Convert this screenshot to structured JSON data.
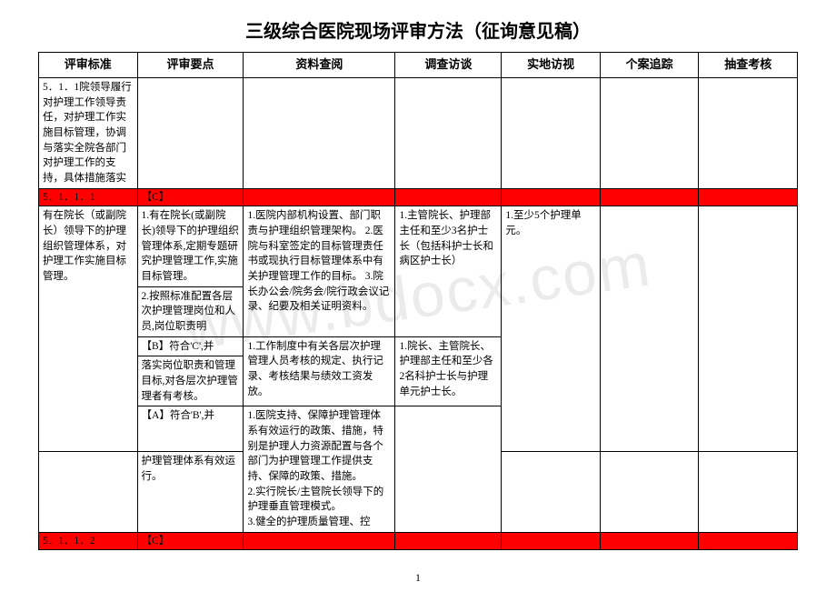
{
  "watermark": "www.bdocx.com",
  "title": "三级综合医院现场评审方法（征询意见稿）",
  "pageNumber": "1",
  "columns": [
    "评审标准",
    "评审要点",
    "资料查阅",
    "调查访谈",
    "实地访视",
    "个案追踪",
    "抽查考核"
  ],
  "rows": {
    "r0": {
      "c0": "5．1．1院领导履行对护理工作领导责任，对护理工作实施目标管理，协调与落实全院各部门对护理工作的支持，具体措施落实"
    },
    "red1": {
      "c0": "5．1．1．1",
      "c1": "【C】"
    },
    "r1a": {
      "c0": "有在院长（或副院长）领导下的护理组织管理体系，对护理工作实施目标管理。",
      "c1": "1.有在院长(或副院长)领导下的护理组织管理体系,定期专题研究护理管理工作,实施目标管理。",
      "c2_merged": "1.医院内部机构设置、部门职责与护理组织管理架构。 2.医院与科室签定的目标管理责任书或现执行目标管理体系中有关护理管理工作的目标。  3.院长办公会/院务会/院行政会议记录、纪要及相关证明资料。",
      "c3": "1.主管院长、护理部主任和至少3名护士长（包括科护士长和病区护士长）",
      "c4": "1.至少5个护理单元。"
    },
    "r1b": {
      "c1": "2.按照标准配置各层次护理管理岗位和人员,岗位职责明"
    },
    "r2label": {
      "c1": "【B】符合'C',并"
    },
    "r2": {
      "c1": "落实岗位职责和管理目标,对各层次护理管理者有考核。",
      "c2": "1.工作制度中有关各层次护理管理人员考核的规定、执行记录、考核结果与绩效工资发放。",
      "c3": "1.院长、主管院长、护理部主任和至少各2名科护士长与护理单元护士长。"
    },
    "r3label": {
      "c1": "【A】符合'B',并"
    },
    "r3": {
      "c1": "护理管理体系有效运行。",
      "c2": "1.医院支持、保障护理管理体系有效运行的政策、措施，特别是护理人力资源配置与各个部门为护理管理工作提供支持、保障的政策、措施。\n2.实行院长/主管院长领导下的护理垂直管理模式。\n3.健全的护理质量管理、控"
    },
    "red2": {
      "c0": "5．1．1．2",
      "c1": "【C】"
    }
  }
}
